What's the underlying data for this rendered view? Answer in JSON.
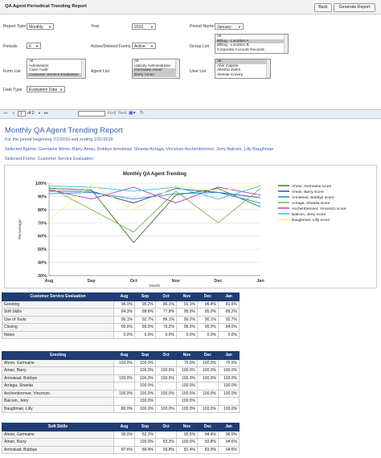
{
  "window": {
    "title": "QA Agent Periodical Trending Report"
  },
  "header_buttons": {
    "back": "Back",
    "generate": "Generate Report"
  },
  "form": {
    "report_type": {
      "label": "Report Type",
      "value": "Monthly"
    },
    "year": {
      "label": "Year",
      "value": "2016"
    },
    "period_name": {
      "label": "Period Name",
      "value": "January"
    },
    "periods": {
      "label": "Periods",
      "value": "6"
    },
    "active_deleted": {
      "label": "Active/Deleted Forms",
      "value": "Active"
    },
    "group_list": {
      "label": "Group List",
      "items": [
        "All",
        "Billing - Location A",
        "Billing - Location B",
        "Corporate Account Records"
      ]
    },
    "form_list": {
      "label": "Form List",
      "items": [
        "All",
        "Admissions",
        "Case Audit",
        "Customer Service Evaluation"
      ]
    },
    "agent_list": {
      "label": "Agent List",
      "items": [
        "All",
        "Upticity Administrator",
        "Germaine Ahner",
        "Barry Aman"
      ]
    },
    "user_list": {
      "label": "User List",
      "items": [
        "All",
        "Abie Capote",
        "Allesha Zahm",
        "Alessie Cravey"
      ]
    },
    "date_type": {
      "label": "Date Type",
      "value": "Evaluation Date"
    }
  },
  "toolbar": {
    "page": "1",
    "of": "of 2",
    "find": "Find",
    "next": "Next"
  },
  "report": {
    "title": "Monthly QA Agent Trending Report",
    "period": "For the period beginning 7/1/2015 and ending 1/31/2016",
    "agents": "Selected Agents: Germaine Ahner, Barry Aman, Bobbye Armstead, Shanita Arriaga, Vincenzo Aschenbrenner, Jerry Balcom, Lilly Baughman",
    "forms": "Selected Forms: Customer Service Evaluation"
  },
  "chart_data": {
    "type": "line",
    "title": "Monthly QA Agent Trending",
    "xlabel": "Month",
    "ylabel": "Percentage",
    "categories": [
      "Aug",
      "Sep",
      "Oct",
      "Nov",
      "Dec",
      "Jan"
    ],
    "y_ticks": [
      "100%",
      "90%",
      "80%",
      "70%",
      "60%",
      "50%",
      "40%",
      "30%"
    ],
    "ylim": [
      30,
      100
    ],
    "legend_position": "right",
    "series": [
      {
        "name": "Ahner, Germaine score",
        "color": "#2e7d32",
        "values": [
          96,
          95,
          55,
          91,
          96,
          82
        ]
      },
      {
        "name": "Aman, Barry score",
        "color": "#3949ab",
        "values": [
          94,
          94,
          85,
          96,
          93,
          89
        ]
      },
      {
        "name": "Armstead, Bobbye score",
        "color": "#1e88e5",
        "values": [
          92,
          93,
          88,
          92,
          93,
          85
        ]
      },
      {
        "name": "Arriaga, Shanita score",
        "color": "#7cb342",
        "values": [
          97,
          80,
          63,
          94,
          70,
          96
        ]
      },
      {
        "name": "Aschenbrenner, Vincenzo score",
        "color": "#ab47bc",
        "values": [
          95,
          88,
          97,
          85,
          97,
          91
        ]
      },
      {
        "name": "Balcom, Jerry score",
        "color": "#26c6da",
        "values": [
          98,
          97,
          94,
          97,
          88,
          98
        ]
      },
      {
        "name": "Baughman, Lilly score",
        "color": "#fff176",
        "values": [
          72,
          99,
          80,
          98,
          94,
          99
        ]
      }
    ]
  },
  "tables": [
    {
      "header": "Customer Service Evaluation",
      "months": [
        "Aug",
        "Sep",
        "Oct",
        "Nov",
        "Dec",
        "Jan"
      ],
      "rows": [
        {
          "name": "Greeting",
          "values": [
            "96.0%",
            "95.2%",
            "86.1%",
            "91.1%",
            "96.4%",
            "81.6%"
          ]
        },
        {
          "name": "Soft Skills",
          "values": [
            "84.3%",
            "88.8%",
            "77.8%",
            "95.0%",
            "85.0%",
            "89.2%"
          ]
        },
        {
          "name": "Use of Tools",
          "values": [
            "90.1%",
            "92.7%",
            "86.1%",
            "90.2%",
            "90.1%",
            "92.7%"
          ]
        },
        {
          "name": "Closing",
          "values": [
            "90.0%",
            "89.5%",
            "76.2%",
            "96.0%",
            "90.0%",
            "84.0%"
          ]
        },
        {
          "name": "Notes",
          "values": [
            "0.0%",
            "0.0%",
            "0.0%",
            "0.0%",
            "0.0%",
            "0.0%"
          ]
        }
      ]
    },
    {
      "header": "Greeting",
      "months": [
        "Aug",
        "Sep",
        "Oct",
        "Nov",
        "Dec",
        "Jan"
      ],
      "rows": [
        {
          "name": "Ahner, Germaine",
          "values": [
            "100.0%",
            "100.0%",
            "",
            "75.0%",
            "100.0%",
            "75.0%"
          ]
        },
        {
          "name": "Aman, Barry",
          "values": [
            "",
            "100.0%",
            "100.0%",
            "100.0%",
            "100.0%",
            "100.0%"
          ]
        },
        {
          "name": "Armstead, Bobbye",
          "values": [
            "100.0%",
            "100.0%",
            "100.0%",
            "100.0%",
            "100.0%",
            "100.0%"
          ]
        },
        {
          "name": "Arriaga, Shanita",
          "values": [
            "",
            "100.0%",
            "",
            "100.0%",
            "",
            "100.0%"
          ]
        },
        {
          "name": "Aschenbrenner, Vincenzo",
          "values": [
            "100.0%",
            "100.0%",
            "100.0%",
            "100.0%",
            "100.0%",
            "100.0%"
          ]
        },
        {
          "name": "Balcom, Jerry",
          "values": [
            "",
            "100.0%",
            "",
            "100.0%",
            "",
            ""
          ]
        },
        {
          "name": "Baughman, Lilly",
          "values": [
            "80.0%",
            "100.0%",
            "100.0%",
            "100.0%",
            "100.0%",
            "100.0%"
          ]
        }
      ]
    },
    {
      "header": "Soft Skills",
      "months": [
        "Aug",
        "Sep",
        "Oct",
        "Nov",
        "Dec",
        "Jan"
      ],
      "rows": [
        {
          "name": "Ahner, Germaine",
          "values": [
            "90.0%",
            "82.2%",
            "",
            "95.5%",
            "94.4%",
            "96.0%"
          ]
        },
        {
          "name": "Aman, Barry",
          "values": [
            "",
            "100.0%",
            "83.3%",
            "100.0%",
            "93.8%",
            "94.6%"
          ]
        },
        {
          "name": "Armstead, Bobbye",
          "values": [
            "87.6%",
            "89.4%",
            "93.8%",
            "81.4%",
            "83.0%",
            "94.6%"
          ]
        }
      ]
    }
  ]
}
